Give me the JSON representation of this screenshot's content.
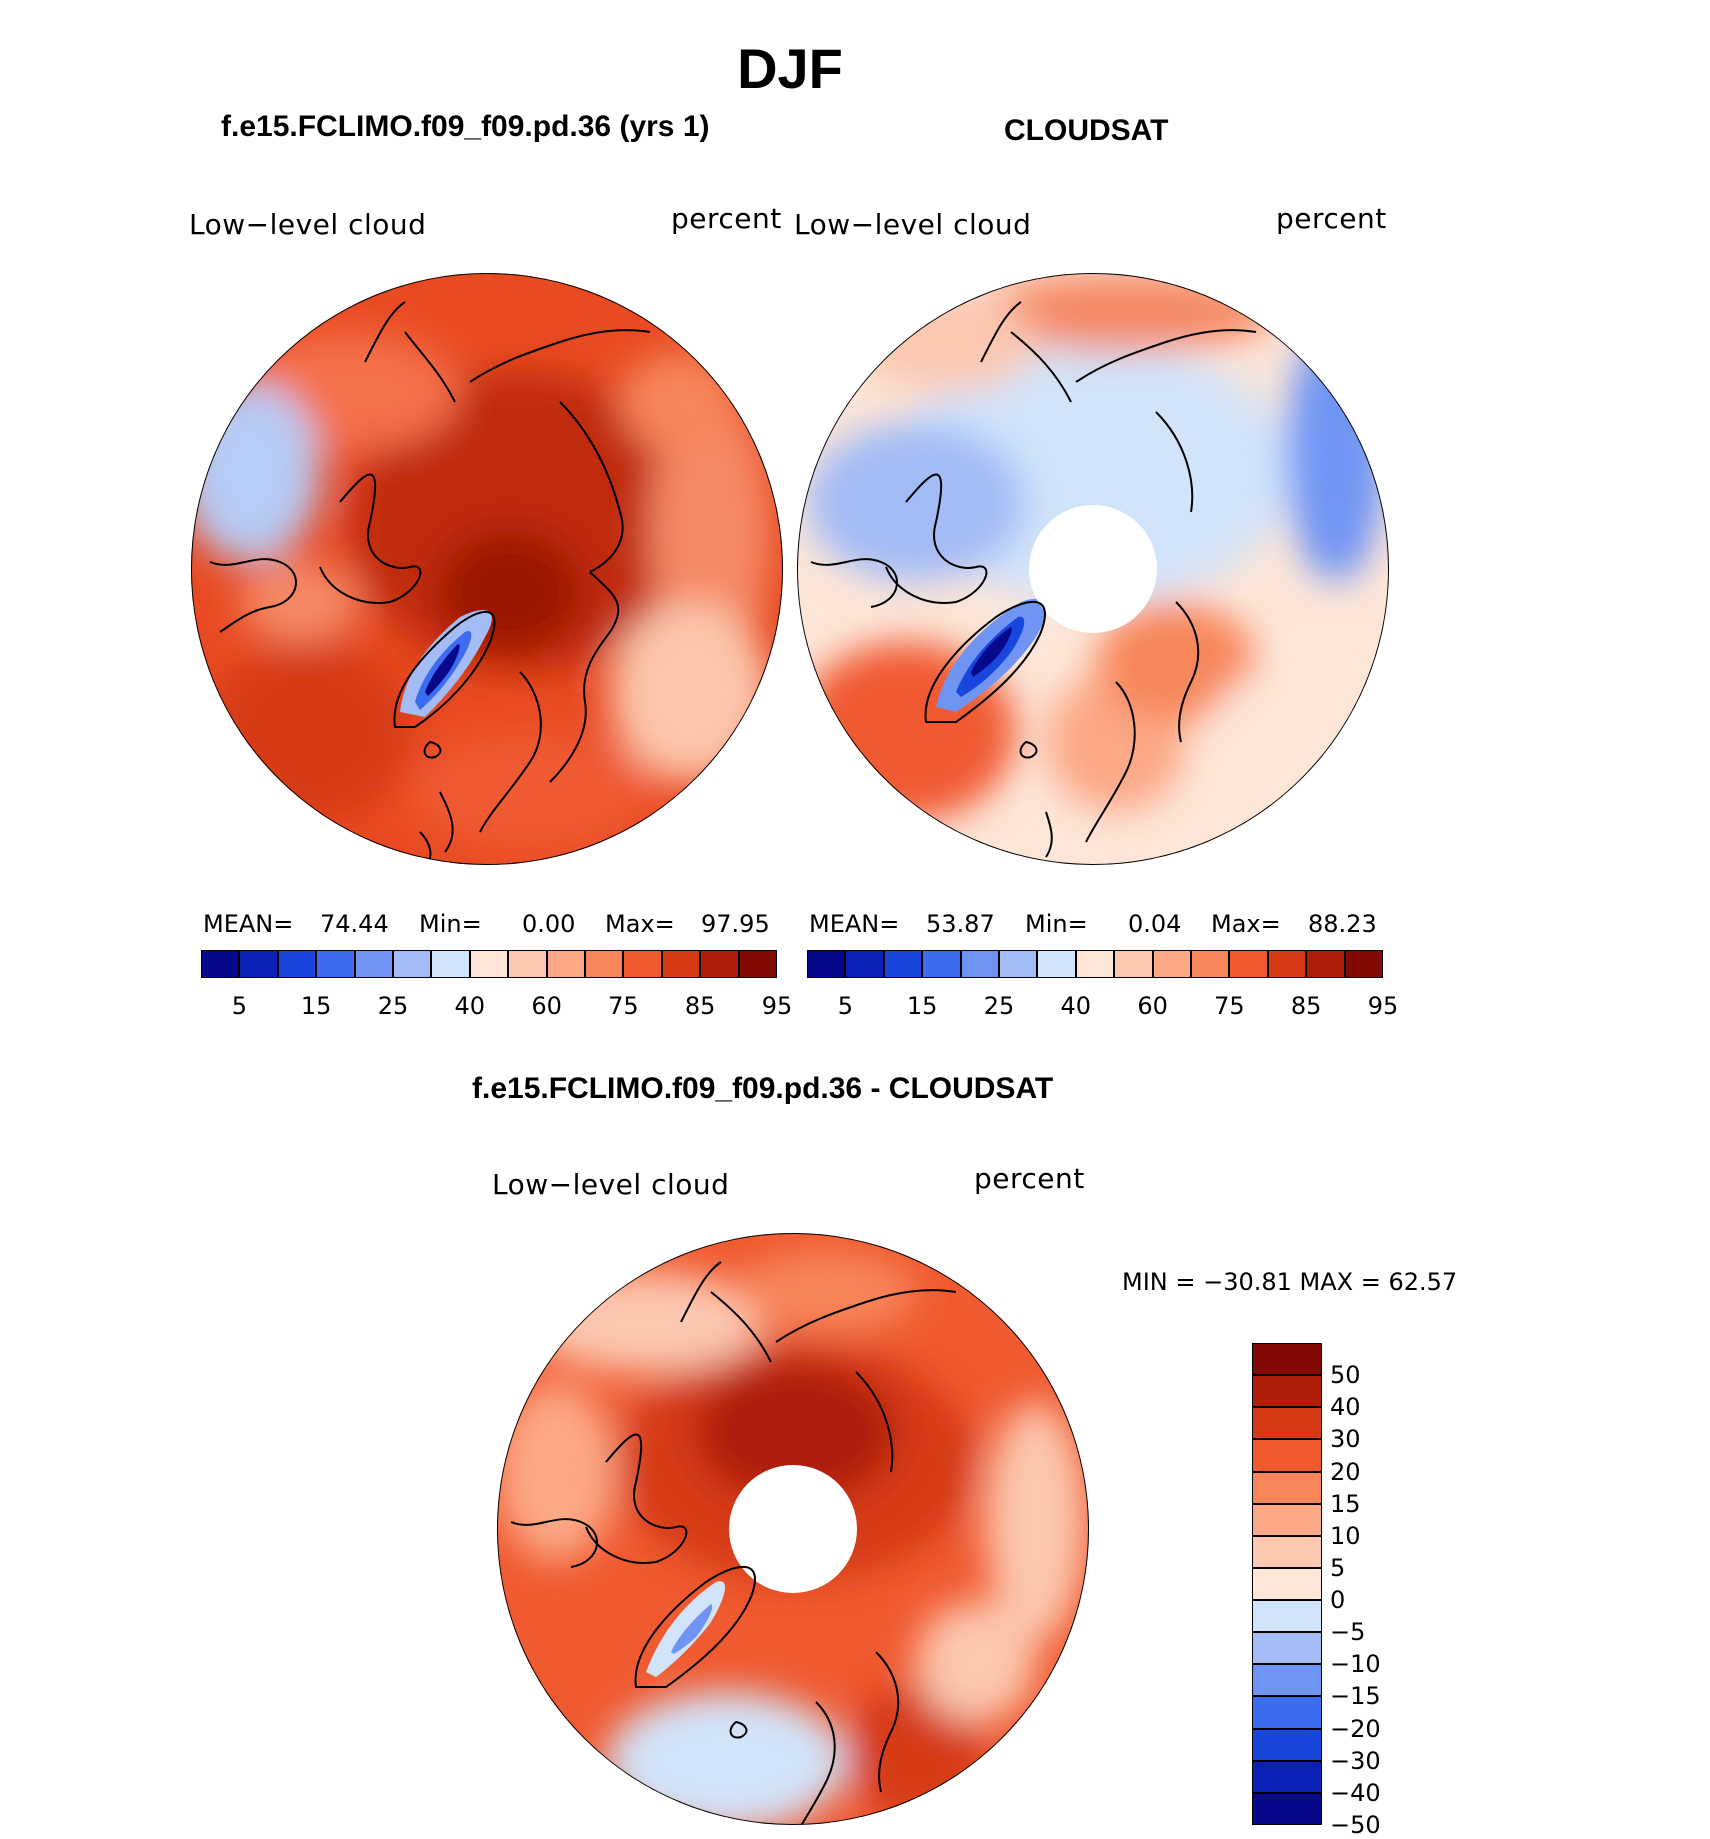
{
  "figure": {
    "season": "DJF",
    "panel_left": {
      "title": "f.e15.FCLIMO.f09_f09.pd.36 (yrs 1)",
      "variable": "Low−level cloud",
      "units": "percent",
      "mean_label": "MEAN=",
      "mean": "74.44",
      "min_label": "Min=",
      "min": "0.00",
      "max_label": "Max=",
      "max": "97.95"
    },
    "panel_right": {
      "title": "CLOUDSAT",
      "variable": "Low−level cloud",
      "units": "percent",
      "mean_label": "MEAN=",
      "mean": "53.87",
      "min_label": "Min=",
      "min": "0.04",
      "max_label": "Max=",
      "max": "88.23"
    },
    "panel_diff": {
      "title": "f.e15.FCLIMO.f09_f09.pd.36 - CLOUDSAT",
      "variable": "Low−level cloud",
      "units": "percent",
      "minmax": "MIN = −30.81  MAX =   62.57"
    }
  },
  "colorbar_abs": {
    "labels": [
      "5",
      "15",
      "25",
      "40",
      "60",
      "75",
      "85",
      "95"
    ],
    "colors": [
      "#08088a",
      "#0a22b8",
      "#1846dc",
      "#3c6cf0",
      "#6f94f4",
      "#a3bcf6",
      "#d2e4fa",
      "#fde6d8",
      "#fcc8b0",
      "#fca886",
      "#f7865a",
      "#f05a30",
      "#d63a14",
      "#ae1e08",
      "#820a02"
    ]
  },
  "colorbar_diff": {
    "labels": [
      "50",
      "40",
      "30",
      "20",
      "15",
      "10",
      "5",
      "0",
      "−5",
      "−10",
      "−15",
      "−20",
      "−30",
      "−40",
      "−50"
    ],
    "colors": [
      "#820a02",
      "#ae1e08",
      "#d63a14",
      "#f05a30",
      "#f7865a",
      "#fca886",
      "#fcc8b0",
      "#fde6d8",
      "#d2e4fa",
      "#a3bcf6",
      "#6f94f4",
      "#3c6cf0",
      "#1846dc",
      "#0a22b8",
      "#08088a"
    ]
  }
}
